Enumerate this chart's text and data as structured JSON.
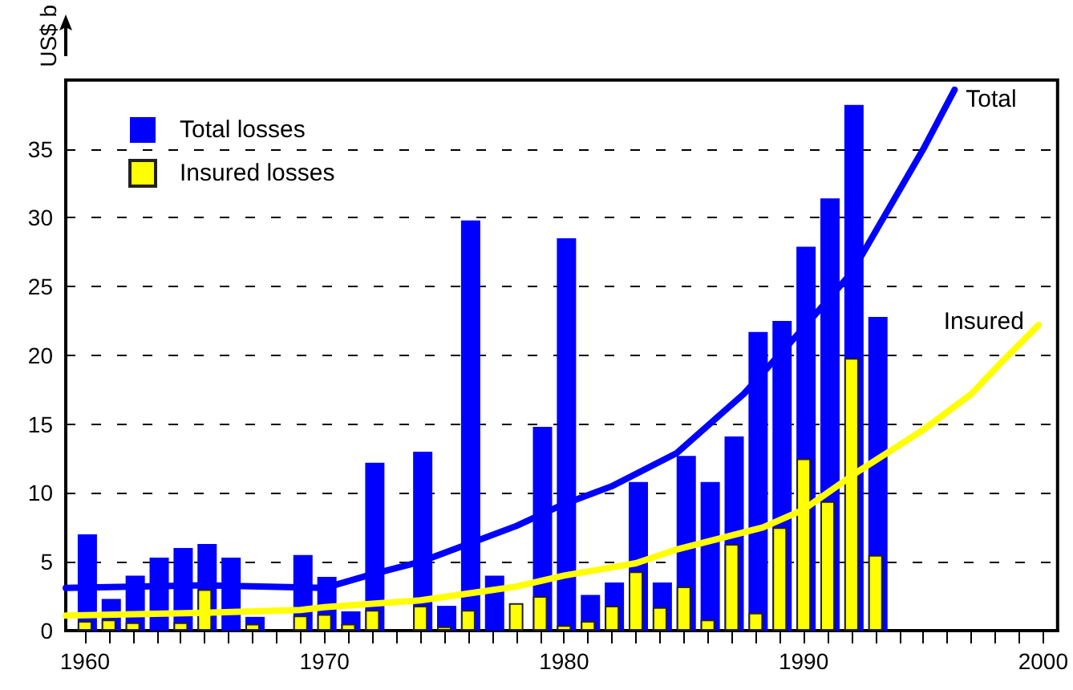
{
  "chart_data": {
    "type": "bar",
    "ylabel": "US$ b",
    "x": [
      1960,
      1961,
      1962,
      1963,
      1964,
      1965,
      1966,
      1967,
      1969,
      1970,
      1971,
      1972,
      1974,
      1975,
      1976,
      1977,
      1978,
      1979,
      1980,
      1981,
      1982,
      1983,
      1984,
      1985,
      1986,
      1987,
      1988,
      1989,
      1990,
      1991,
      1992,
      1993
    ],
    "series": [
      {
        "name": "Total losses",
        "color": "#0000ff",
        "values": [
          7.0,
          2.3,
          4.0,
          5.3,
          6.0,
          6.3,
          5.3,
          1.0,
          5.5,
          3.9,
          1.4,
          12.2,
          13.0,
          1.8,
          29.8,
          4.0,
          null,
          14.8,
          28.5,
          2.6,
          3.5,
          10.8,
          3.5,
          12.7,
          10.8,
          14.1,
          21.7,
          22.5,
          27.9,
          31.4,
          38.2,
          22.8
        ]
      },
      {
        "name": "Insured losses",
        "color": "#ffff00",
        "values": [
          0.7,
          0.8,
          0.6,
          null,
          0.6,
          3.0,
          null,
          0.5,
          1.1,
          1.2,
          0.5,
          1.5,
          1.8,
          0.3,
          1.5,
          null,
          2.0,
          2.5,
          0.4,
          0.7,
          1.8,
          4.3,
          1.7,
          3.2,
          0.8,
          6.3,
          1.3,
          7.5,
          12.5,
          9.4,
          19.8,
          5.5
        ]
      },
      {
        "name": "Total",
        "type": "line",
        "color": "#0000ff",
        "x": [
          1959.2,
          1965,
          1970,
          1972,
          1974,
          1976,
          1978,
          1980,
          1982,
          1984.7,
          1987.5,
          1990,
          1992,
          1995,
          1996.3
        ],
        "values": [
          3.1,
          3.3,
          3.1,
          4.1,
          5.0,
          6.3,
          7.6,
          9.2,
          10.5,
          12.9,
          17.2,
          22.0,
          26.0,
          35.0,
          39.3
        ]
      },
      {
        "name": "Insured",
        "type": "line",
        "color": "#ffff00",
        "x": [
          1959.2,
          1965,
          1969,
          1970,
          1974,
          1976,
          1978,
          1980,
          1983,
          1984.7,
          1988.3,
          1990,
          1992.3,
          1995,
          1997,
          1998.2,
          1999.8
        ],
        "values": [
          1.1,
          1.3,
          1.5,
          1.7,
          2.2,
          2.7,
          3.2,
          4.0,
          4.9,
          5.9,
          7.5,
          8.8,
          11.6,
          14.6,
          17.2,
          19.4,
          22.2
        ]
      }
    ],
    "xlim": [
      1959.2,
      2000.6
    ],
    "xticks": [
      1960,
      {
        "value": 1961,
        "label": null
      },
      {
        "value": 1962,
        "label": null
      },
      {
        "value": 1963,
        "label": null
      },
      {
        "value": 1964,
        "label": null
      },
      {
        "value": 1965,
        "label": null
      },
      {
        "value": 1966,
        "label": null
      },
      {
        "value": 1967,
        "label": null
      },
      {
        "value": 1968,
        "label": null
      },
      {
        "value": 1969,
        "label": null
      },
      1970,
      {
        "value": 1971,
        "label": null
      },
      {
        "value": 1972,
        "label": null
      },
      {
        "value": 1973,
        "label": null
      },
      {
        "value": 1974,
        "label": null
      },
      {
        "value": 1975,
        "label": null
      },
      {
        "value": 1976,
        "label": null
      },
      {
        "value": 1977,
        "label": null
      },
      {
        "value": 1978,
        "label": null
      },
      {
        "value": 1979,
        "label": null
      },
      1980,
      {
        "value": 1981,
        "label": null
      },
      {
        "value": 1982,
        "label": null
      },
      {
        "value": 1983,
        "label": null
      },
      {
        "value": 1984,
        "label": null
      },
      {
        "value": 1985,
        "label": null
      },
      {
        "value": 1986,
        "label": null
      },
      {
        "value": 1987,
        "label": null
      },
      {
        "value": 1988,
        "label": null
      },
      {
        "value": 1989,
        "label": null
      },
      1990,
      {
        "value": 1991,
        "label": null
      },
      {
        "value": 1992,
        "label": null
      },
      {
        "value": 1993,
        "label": null
      },
      {
        "value": 1994,
        "label": null
      },
      {
        "value": 1995,
        "label": null
      },
      {
        "value": 1996,
        "label": null
      },
      {
        "value": 1997,
        "label": null
      },
      {
        "value": 1998,
        "label": null
      },
      {
        "value": 1999,
        "label": null
      },
      2000
    ],
    "ylim": [
      0,
      40
    ],
    "yticks": [
      0,
      5,
      10,
      15,
      20,
      25,
      30,
      35
    ],
    "grid": "y",
    "legend": "top left",
    "marker": "none",
    "line_style": "solid"
  }
}
